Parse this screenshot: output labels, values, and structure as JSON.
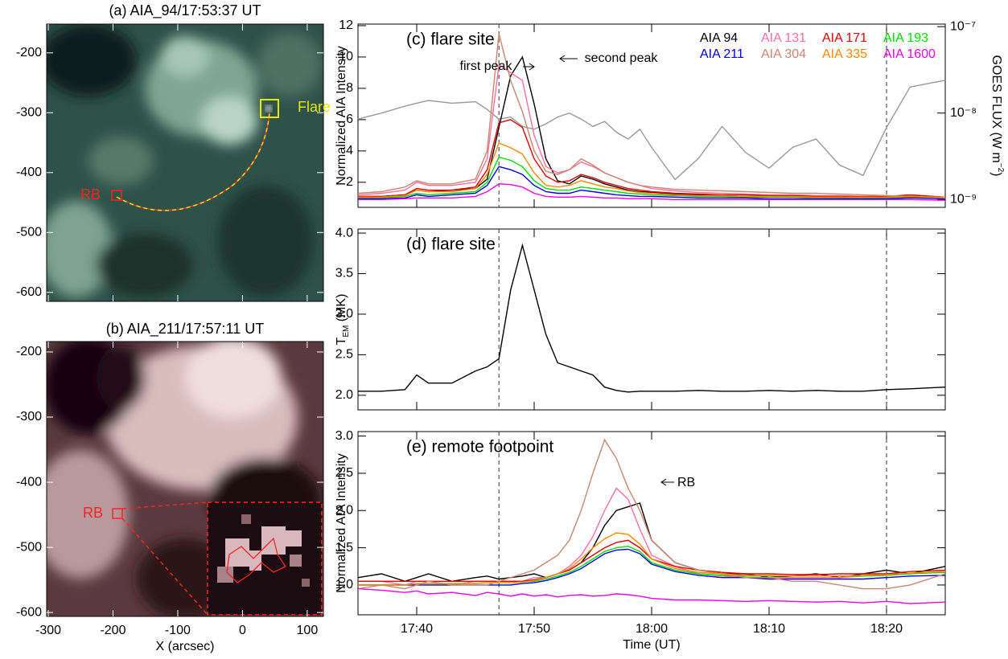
{
  "chart_data": [
    {
      "type": "image",
      "title": "(a) AIA_94/17:53:37 UT",
      "xlim": [
        -302.5,
        125
      ],
      "xticks": [
        -300,
        -200,
        -100,
        0,
        100
      ],
      "ylim": [
        -615,
        -152
      ],
      "yticks": [
        -200,
        -300,
        -400,
        -500,
        -600
      ],
      "labels": [
        "Flare",
        "RB"
      ]
    },
    {
      "type": "image",
      "title": "(b) AIA_211/17:57:11 UT",
      "xlabel": "X (arcsec)",
      "xlim": [
        -302.5,
        125
      ],
      "xticks": [
        -300,
        -200,
        -100,
        0,
        100
      ],
      "xtick_labels": true,
      "ylim": [
        -606,
        -184
      ],
      "yticks": [
        -200,
        -300,
        -400,
        -500,
        -600
      ],
      "labels": [
        "RB"
      ]
    },
    {
      "type": "line",
      "panel_label": "(c) flare site",
      "ylabel": "Normalized AIA Intensity",
      "y2label": [
        "GOES FLUX (W m",
        "−2",
        ")"
      ],
      "annotations": [
        "first peak",
        "second peak"
      ],
      "x": [
        "17:35",
        "17:37",
        "17:39",
        "17:40",
        "17:41",
        "17:43",
        "17:45",
        "17:46",
        "17:47",
        "17:48",
        "17:49",
        "17:50",
        "17:51",
        "17:52",
        "17:53",
        "17:54",
        "17:55",
        "17:56",
        "17:57",
        "17:58",
        "17:59",
        "18:00",
        "18:02",
        "18:04",
        "18:06",
        "18:08",
        "18:10",
        "18:12",
        "18:14",
        "18:16",
        "18:18",
        "18:20",
        "18:22",
        "18:25"
      ],
      "xlim": [
        "17:35",
        "18:25"
      ],
      "xticks": [
        "17:40",
        "17:50",
        "18:00",
        "18:10",
        "18:20"
      ],
      "vlines": [
        "17:47",
        "18:20"
      ],
      "ylim": [
        0.4,
        12.1
      ],
      "yticks": [
        2,
        4,
        6,
        8,
        10,
        12
      ],
      "y2log": true,
      "y2lim": [
        8.1e-10,
        1.07e-07
      ],
      "y2ticks": [
        {
          "value": 1e-09,
          "label": "10⁻⁹"
        },
        {
          "value": 1e-08,
          "label": "10⁻⁸"
        },
        {
          "value": 1e-07,
          "label": "10⁻⁷"
        }
      ],
      "series": [
        {
          "name": "AIA 94",
          "color": "#000000",
          "values": [
            1.1,
            1.1,
            1.2,
            1.5,
            1.4,
            1.5,
            1.6,
            2.2,
            5.5,
            8.8,
            10.0,
            7.0,
            3.5,
            2.1,
            1.9,
            2.4,
            2.2,
            1.9,
            1.7,
            1.5,
            1.4,
            1.35,
            1.25,
            1.2,
            1.15,
            1.1,
            1.1,
            1.1,
            1.05,
            1.05,
            1.05,
            1.05,
            1.1,
            1.0
          ]
        },
        {
          "name": "AIA 131",
          "color": "#ff6fa0",
          "values": [
            1.2,
            1.3,
            1.5,
            2.0,
            1.8,
            1.8,
            2.0,
            3.5,
            9.5,
            9.0,
            8.5,
            5.0,
            3.0,
            2.6,
            2.8,
            3.3,
            3.0,
            2.6,
            2.3,
            2.0,
            1.8,
            1.6,
            1.45,
            1.35,
            1.3,
            1.25,
            1.2,
            1.2,
            1.15,
            1.15,
            1.1,
            1.1,
            1.15,
            1.05
          ]
        },
        {
          "name": "AIA 171",
          "color": "#e00000",
          "values": [
            1.1,
            1.1,
            1.2,
            1.6,
            1.5,
            1.5,
            1.7,
            2.8,
            5.8,
            6.0,
            5.5,
            3.5,
            2.4,
            2.0,
            2.1,
            2.5,
            2.3,
            2.0,
            1.8,
            1.6,
            1.5,
            1.4,
            1.3,
            1.25,
            1.2,
            1.2,
            1.15,
            1.15,
            1.1,
            1.1,
            1.1,
            1.1,
            1.2,
            1.05
          ]
        },
        {
          "name": "AIA 193",
          "color": "#00dd00",
          "values": [
            1.0,
            1.0,
            1.1,
            1.3,
            1.2,
            1.3,
            1.4,
            2.0,
            3.6,
            3.4,
            3.0,
            2.1,
            1.6,
            1.5,
            1.5,
            1.7,
            1.6,
            1.5,
            1.4,
            1.3,
            1.25,
            1.2,
            1.15,
            1.1,
            1.1,
            1.05,
            1.05,
            1.05,
            1.0,
            1.0,
            1.0,
            1.0,
            1.05,
            1.0
          ]
        },
        {
          "name": "AIA 211",
          "color": "#0000e0",
          "values": [
            0.95,
            0.95,
            1.0,
            1.2,
            1.1,
            1.2,
            1.3,
            1.8,
            3.0,
            2.8,
            2.5,
            1.8,
            1.4,
            1.3,
            1.3,
            1.5,
            1.4,
            1.3,
            1.2,
            1.15,
            1.1,
            1.1,
            1.05,
            1.0,
            1.0,
            1.0,
            0.95,
            0.95,
            0.95,
            0.95,
            0.95,
            0.95,
            1.0,
            0.95
          ]
        },
        {
          "name": "AIA 304",
          "color": "#c8866e",
          "values": [
            1.3,
            1.4,
            1.7,
            2.1,
            1.9,
            1.9,
            2.2,
            4.0,
            11.5,
            8.5,
            6.5,
            4.0,
            2.7,
            2.5,
            2.8,
            3.5,
            3.1,
            2.6,
            2.3,
            2.0,
            1.8,
            1.7,
            1.55,
            1.5,
            1.45,
            1.4,
            1.35,
            1.3,
            1.3,
            1.25,
            1.2,
            1.15,
            1.1,
            1.05
          ]
        },
        {
          "name": "AIA 335",
          "color": "#ff8800",
          "values": [
            1.05,
            1.05,
            1.15,
            1.5,
            1.4,
            1.4,
            1.6,
            2.5,
            4.5,
            4.2,
            3.8,
            2.6,
            1.8,
            1.7,
            1.8,
            2.1,
            1.9,
            1.7,
            1.6,
            1.45,
            1.35,
            1.3,
            1.2,
            1.15,
            1.15,
            1.1,
            1.1,
            1.1,
            1.05,
            1.05,
            1.05,
            1.05,
            1.1,
            1.0
          ]
        },
        {
          "name": "AIA 1600",
          "color": "#ee00ee",
          "values": [
            0.9,
            0.9,
            0.95,
            1.0,
            1.0,
            1.0,
            1.1,
            1.4,
            1.9,
            1.85,
            1.7,
            1.3,
            1.1,
            1.05,
            1.05,
            1.1,
            1.05,
            1.0,
            1.0,
            0.95,
            0.95,
            0.95,
            0.9,
            0.9,
            0.9,
            0.9,
            0.9,
            0.9,
            0.9,
            0.9,
            0.9,
            0.9,
            0.9,
            0.85
          ]
        },
        {
          "color": "#999999",
          "axis": "y2",
          "values": [
            8.5e-09,
            1e-08,
            1.2e-08,
            1.3e-08,
            1.4e-08,
            1.3e-08,
            1.35e-08,
            1.1e-08,
            8.5e-09,
            9e-09,
            7e-09,
            6.5e-09,
            7.5e-09,
            9e-09,
            1e-08,
            8.5e-09,
            7e-09,
            8e-09,
            6e-09,
            5e-09,
            6.5e-09,
            4e-09,
            1.7e-09,
            3e-09,
            7e-09,
            3.5e-09,
            2.3e-09,
            4e-09,
            5e-09,
            2.5e-09,
            1.9e-09,
            6.8e-09,
            2e-08,
            2.4e-08
          ]
        }
      ]
    },
    {
      "type": "line",
      "panel_label": "(d) flare site",
      "ylabel_parts": [
        "T",
        "EM",
        " (MK)"
      ],
      "x": [
        "17:35",
        "17:37",
        "17:39",
        "17:40",
        "17:41",
        "17:43",
        "17:45",
        "17:46",
        "17:47",
        "17:48",
        "17:49",
        "17:50",
        "17:51",
        "17:52",
        "17:53",
        "17:54",
        "17:55",
        "17:56",
        "17:57",
        "17:58",
        "17:59",
        "18:00",
        "18:02",
        "18:04",
        "18:06",
        "18:08",
        "18:10",
        "18:12",
        "18:14",
        "18:16",
        "18:18",
        "18:20",
        "18:22",
        "18:25"
      ],
      "xlim": [
        "17:35",
        "18:25"
      ],
      "xticks": [
        "17:40",
        "17:50",
        "18:00",
        "18:10",
        "18:20"
      ],
      "vlines": [
        "17:47",
        "18:20"
      ],
      "ylim": [
        1.82,
        4.05
      ],
      "yticks": [
        {
          "value": 2,
          "label": "2.0"
        },
        {
          "value": 2.5,
          "label": "2.5"
        },
        {
          "value": 3,
          "label": "3.0"
        },
        {
          "value": 3.5,
          "label": "3.5"
        },
        {
          "value": 4,
          "label": "4.0"
        }
      ],
      "series": [
        {
          "color": "#000000",
          "values": [
            2.05,
            2.05,
            2.07,
            2.25,
            2.15,
            2.15,
            2.3,
            2.35,
            2.45,
            3.3,
            3.85,
            3.3,
            2.75,
            2.4,
            2.35,
            2.3,
            2.25,
            2.1,
            2.06,
            2.04,
            2.05,
            2.05,
            2.05,
            2.06,
            2.05,
            2.05,
            2.06,
            2.05,
            2.06,
            2.05,
            2.05,
            2.07,
            2.08,
            2.1
          ]
        }
      ]
    },
    {
      "type": "line",
      "panel_label": "(e) remote footpoint",
      "ylabel": "Normalized AIA Intensity",
      "xlabel": "Time (UT)",
      "annotations": [
        "RB"
      ],
      "x": [
        "17:35",
        "17:37",
        "17:39",
        "17:40",
        "17:41",
        "17:43",
        "17:45",
        "17:46",
        "17:47",
        "17:48",
        "17:49",
        "17:50",
        "17:51",
        "17:52",
        "17:53",
        "17:54",
        "17:55",
        "17:56",
        "17:57",
        "17:58",
        "17:59",
        "18:00",
        "18:02",
        "18:04",
        "18:06",
        "18:08",
        "18:10",
        "18:12",
        "18:14",
        "18:16",
        "18:18",
        "18:20",
        "18:22",
        "18:25"
      ],
      "xlim": [
        "17:35",
        "18:25"
      ],
      "xticks": [
        "17:40",
        "17:50",
        "18:00",
        "18:10",
        "18:20"
      ],
      "xtick_labels": true,
      "vlines": [
        "17:47",
        "18:20"
      ],
      "ylim": [
        0.6,
        3.06
      ],
      "yticks": [
        {
          "value": 1,
          "label": "1.0"
        },
        {
          "value": 1.5,
          "label": "1.5"
        },
        {
          "value": 2,
          "label": "2.0"
        },
        {
          "value": 2.5,
          "label": "2.5"
        },
        {
          "value": 3,
          "label": "3.0"
        }
      ],
      "series": [
        {
          "color": "#000000",
          "values": [
            1.1,
            1.15,
            1.05,
            1.1,
            1.15,
            1.05,
            1.1,
            1.12,
            1.08,
            1.1,
            1.12,
            1.15,
            1.1,
            1.15,
            1.2,
            1.3,
            1.5,
            1.8,
            2.0,
            2.05,
            2.1,
            1.6,
            1.3,
            1.2,
            1.15,
            1.15,
            1.1,
            1.12,
            1.15,
            1.1,
            1.15,
            1.2,
            1.15,
            1.25
          ]
        },
        {
          "color": "#ff6fa0",
          "values": [
            1.05,
            1.05,
            1.0,
            1.05,
            1.05,
            1.0,
            1.05,
            1.05,
            1.05,
            1.05,
            1.05,
            1.1,
            1.1,
            1.15,
            1.25,
            1.4,
            1.65,
            2.0,
            2.3,
            2.15,
            1.75,
            1.4,
            1.25,
            1.15,
            1.12,
            1.1,
            1.1,
            1.1,
            1.1,
            1.1,
            1.12,
            1.15,
            1.15,
            1.18
          ]
        },
        {
          "color": "#e00000",
          "values": [
            1.05,
            1.05,
            1.05,
            1.05,
            1.05,
            1.05,
            1.05,
            1.05,
            1.05,
            1.05,
            1.05,
            1.07,
            1.1,
            1.15,
            1.2,
            1.3,
            1.4,
            1.5,
            1.57,
            1.6,
            1.5,
            1.35,
            1.25,
            1.2,
            1.17,
            1.15,
            1.15,
            1.14,
            1.14,
            1.15,
            1.15,
            1.15,
            1.18,
            1.2
          ]
        },
        {
          "color": "#00dd00",
          "values": [
            1.0,
            1.0,
            1.0,
            1.02,
            1.02,
            1.02,
            1.02,
            1.03,
            1.03,
            1.03,
            1.04,
            1.05,
            1.08,
            1.12,
            1.17,
            1.25,
            1.35,
            1.45,
            1.5,
            1.52,
            1.45,
            1.3,
            1.2,
            1.15,
            1.13,
            1.12,
            1.12,
            1.12,
            1.12,
            1.12,
            1.12,
            1.13,
            1.15,
            1.17
          ]
        },
        {
          "color": "#0000e0",
          "values": [
            1.0,
            1.0,
            1.0,
            1.0,
            1.0,
            1.0,
            1.0,
            1.0,
            1.0,
            1.0,
            1.02,
            1.03,
            1.06,
            1.1,
            1.15,
            1.22,
            1.32,
            1.42,
            1.47,
            1.48,
            1.42,
            1.28,
            1.18,
            1.13,
            1.1,
            1.1,
            1.08,
            1.08,
            1.08,
            1.08,
            1.08,
            1.1,
            1.12,
            1.13
          ]
        },
        {
          "color": "#c8866e",
          "values": [
            0.95,
            1.0,
            0.95,
            1.0,
            1.05,
            1.0,
            1.0,
            1.0,
            1.05,
            1.1,
            1.15,
            1.2,
            1.3,
            1.4,
            1.6,
            2.0,
            2.5,
            2.95,
            2.7,
            2.3,
            2.0,
            1.6,
            1.3,
            1.2,
            1.15,
            1.1,
            1.1,
            1.05,
            1.05,
            1.0,
            0.95,
            0.95,
            1.0,
            1.15
          ]
        },
        {
          "color": "#ff8800",
          "values": [
            1.0,
            1.0,
            1.0,
            1.02,
            1.02,
            1.02,
            1.02,
            1.03,
            1.03,
            1.03,
            1.04,
            1.06,
            1.1,
            1.15,
            1.22,
            1.35,
            1.5,
            1.62,
            1.7,
            1.68,
            1.55,
            1.35,
            1.22,
            1.17,
            1.15,
            1.13,
            1.13,
            1.12,
            1.12,
            1.12,
            1.13,
            1.14,
            1.16,
            1.18
          ]
        },
        {
          "color": "#ee00ee",
          "values": [
            0.95,
            0.93,
            0.9,
            0.92,
            0.88,
            0.9,
            0.86,
            0.9,
            0.88,
            0.85,
            0.88,
            0.85,
            0.87,
            0.84,
            0.86,
            0.87,
            0.85,
            0.86,
            0.88,
            0.87,
            0.85,
            0.82,
            0.8,
            0.8,
            0.79,
            0.78,
            0.79,
            0.78,
            0.77,
            0.78,
            0.76,
            0.78,
            0.75,
            0.77
          ]
        }
      ]
    }
  ]
}
